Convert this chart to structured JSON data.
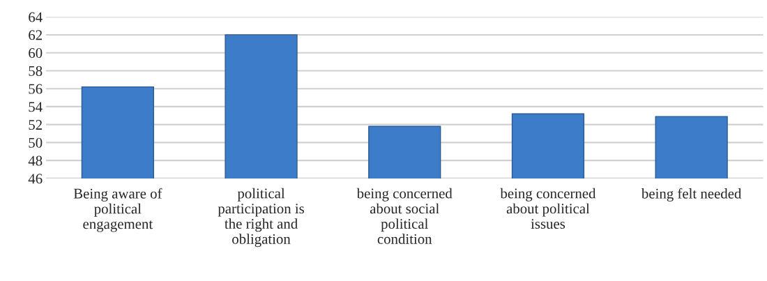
{
  "chart_data": {
    "type": "bar",
    "categories": [
      "Being aware of\npolitical\nengagement",
      "political\nparticipation is\nthe right and\nobligation",
      "being concerned\nabout social\npolitical\ncondition",
      "being concerned\nabout political\nissues",
      "being felt needed"
    ],
    "values": [
      56.2,
      62,
      51.8,
      53.2,
      52.9
    ],
    "color": "#3d7cc9",
    "ylim": [
      46,
      64
    ],
    "yticks": [
      46,
      48,
      50,
      52,
      54,
      56,
      58,
      60,
      62,
      64
    ],
    "grid": "y"
  }
}
